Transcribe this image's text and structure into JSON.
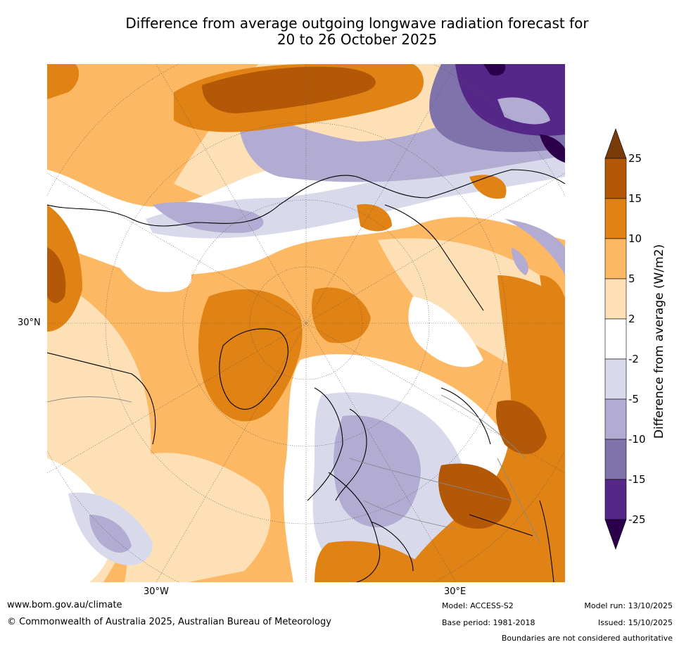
{
  "title_line1": "Difference from average outgoing longwave radiation forecast for",
  "title_line2": "20 to 26 October 2025",
  "map": {
    "lat_label": "30°N",
    "lon_labels": [
      "30°W",
      "30°E"
    ],
    "projection_description": "Northern hemisphere polar stereographic"
  },
  "colorbar": {
    "label": "Difference from average (W/m2)",
    "ticks": [
      "25",
      "15",
      "10",
      "5",
      "2",
      "-2",
      "-5",
      "-10",
      "-15",
      "-25"
    ],
    "colors": [
      "#7a3b0a",
      "#b35806",
      "#e08214",
      "#fdb863",
      "#fee0b6",
      "#ffffff",
      "#d8daeb",
      "#b2abd2",
      "#8073ac",
      "#542788",
      "#2d004b"
    ]
  },
  "footer": {
    "url": "www.bom.gov.au/climate",
    "copyright": "© Commonwealth of Australia 2025, Australian Bureau of Meteorology",
    "model": "Model: ACCESS-S2",
    "base_period": "Base period: 1981-2018",
    "model_run": "Model run: 13/10/2025",
    "issued": "Issued: 15/10/2025",
    "disclaimer": "Boundaries are not considered authoritative"
  }
}
